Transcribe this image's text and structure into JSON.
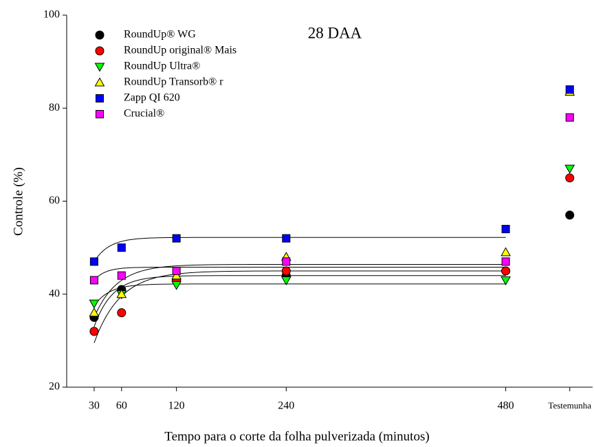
{
  "chart_data": {
    "type": "scatter",
    "title": "28 DAA",
    "xlabel": "Tempo para o corte da folha pulverizada (minutos)",
    "ylabel": "Controle (%)",
    "x": [
      30,
      60,
      120,
      240,
      480,
      550
    ],
    "xlim": [
      0,
      575
    ],
    "xticks": [
      30,
      60,
      120,
      240,
      480,
      {
        "value": 550,
        "label": "Testemunha"
      }
    ],
    "ylim": [
      20,
      100
    ],
    "yticks": [
      20,
      40,
      60,
      80,
      100
    ],
    "legend": "upper left",
    "series": [
      {
        "name": "RoundUp® WG",
        "color": "#000000",
        "marker": "circle",
        "values": [
          35,
          41,
          43,
          44,
          45,
          57
        ],
        "fit": {
          "y0": 29.5,
          "asymptote": 45,
          "k": 0.035
        }
      },
      {
        "name": "RoundUp original® Mais",
        "color": "#ff0000",
        "marker": "circle",
        "values": [
          32,
          36,
          43,
          45,
          45,
          65
        ],
        "fit": {
          "y0": 33,
          "asymptote": 44,
          "k": 0.05
        }
      },
      {
        "name": "RoundUp Ultra®",
        "color": "#00ff00",
        "marker": "triangle-down",
        "values": [
          38,
          40,
          42,
          43,
          43,
          67
        ],
        "fit": {
          "y0": 37.5,
          "asymptote": 42.2,
          "k": 0.06
        }
      },
      {
        "name": "RoundUp Transorb® r",
        "color": "#ffff00",
        "marker": "triangle-up",
        "values": [
          36,
          40,
          44,
          48,
          49,
          83.5
        ],
        "fit": {
          "y0": 35,
          "asymptote": 46.4,
          "k": 0.04
        }
      },
      {
        "name": "Zapp QI 620",
        "color": "#0000ff",
        "marker": "square",
        "values": [
          47,
          50,
          52,
          52,
          54,
          84
        ],
        "fit": {
          "y0": 47,
          "asymptote": 52.2,
          "k": 0.06
        }
      },
      {
        "name": "Crucial®",
        "color": "#ff00ff",
        "marker": "square",
        "values": [
          43,
          44,
          45,
          47,
          47,
          78
        ],
        "fit": {
          "y0": 43,
          "asymptote": 45.8,
          "k": 0.08
        }
      }
    ]
  }
}
